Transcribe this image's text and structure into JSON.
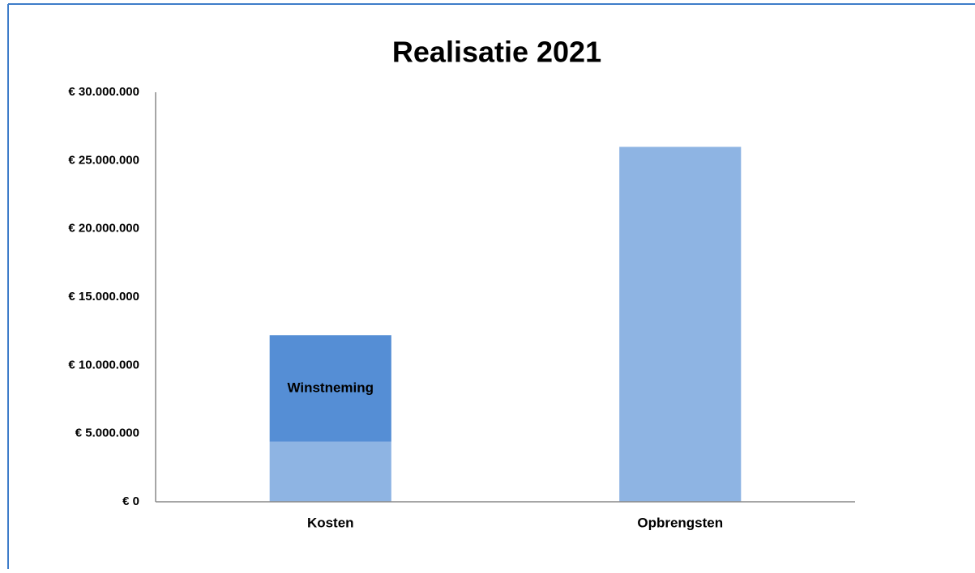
{
  "chart_data": {
    "type": "stacked_bar",
    "title": "Realisatie 2021",
    "categories": [
      "Kosten",
      "Opbrengsten"
    ],
    "series": [
      {
        "color": "#8eb4e3",
        "values": [
          4400000,
          26000000
        ]
      },
      {
        "name": "Winstneming",
        "color": "#558ed5",
        "values": [
          7800000,
          null
        ]
      }
    ],
    "ylim": [
      0,
      30000000
    ],
    "yticks": [
      {
        "value": 0,
        "label": "€ 0"
      },
      {
        "value": 5000000,
        "label": "€ 5.000.000"
      },
      {
        "value": 10000000,
        "label": "€ 10.000.000"
      },
      {
        "value": 15000000,
        "label": "€ 15.000.000"
      },
      {
        "value": 20000000,
        "label": "€ 20.000.000"
      },
      {
        "value": 25000000,
        "label": "€ 25.000.000"
      },
      {
        "value": 30000000,
        "label": "€ 30.000.000"
      }
    ],
    "grid": false
  }
}
